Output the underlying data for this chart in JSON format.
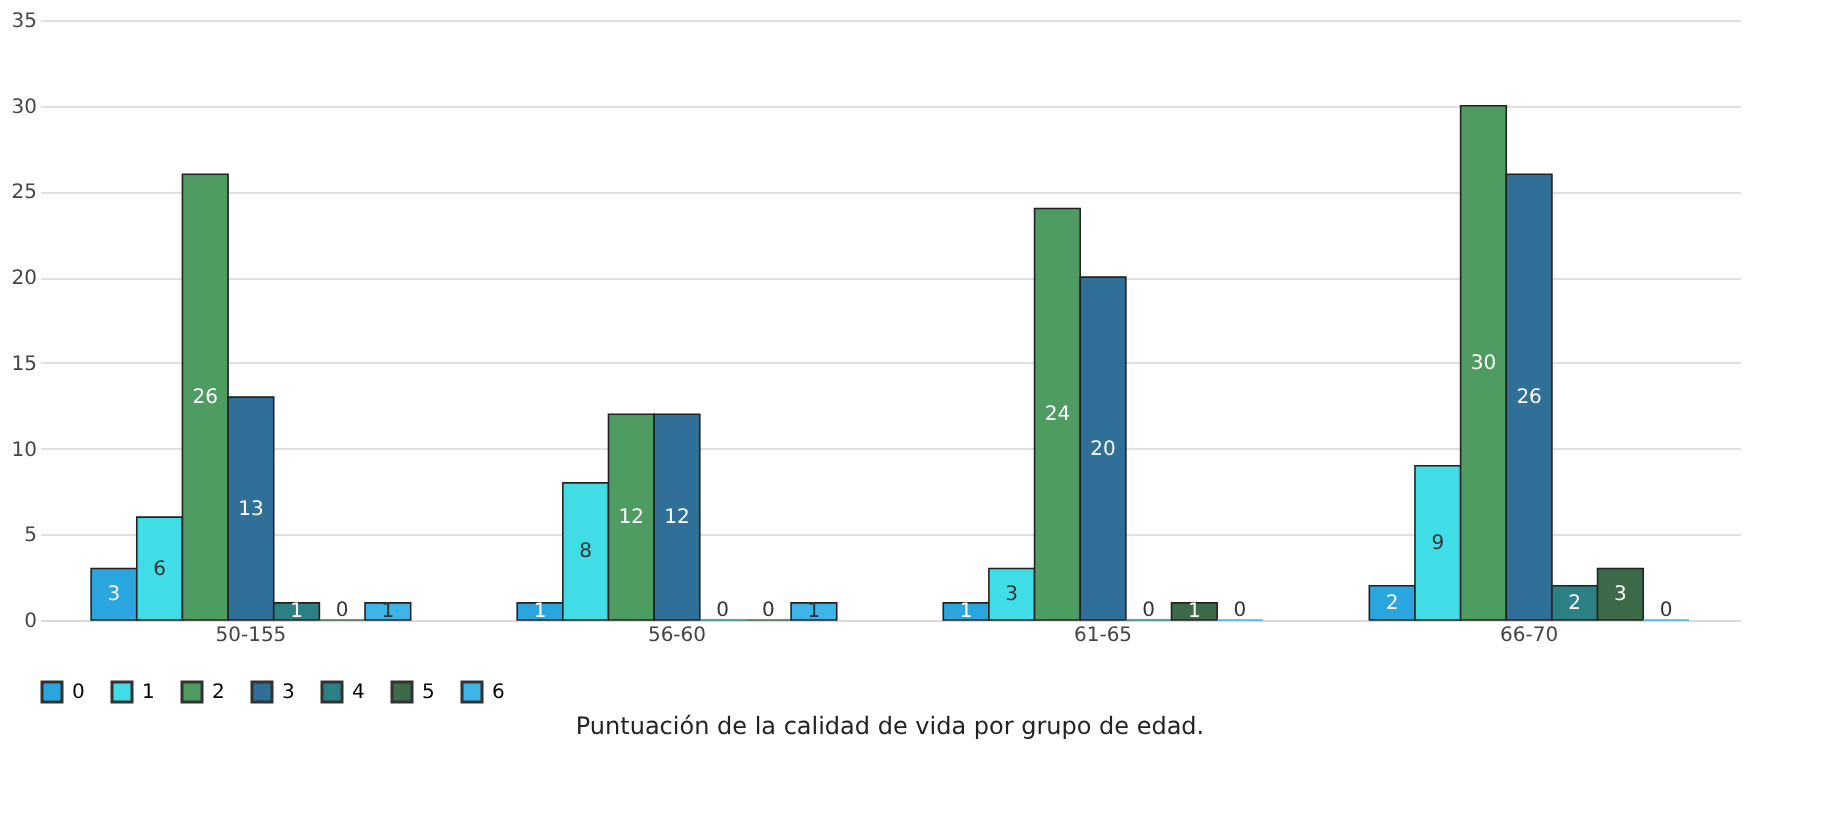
{
  "chart_data": {
    "type": "bar",
    "title": "Puntuación de la calidad de vida por grupo de edad.",
    "categories": [
      "50-155",
      "56-60",
      "61-65",
      "66-70"
    ],
    "series": [
      {
        "name": "0",
        "color": "#2aa6df",
        "values": [
          3,
          1,
          1,
          2
        ]
      },
      {
        "name": "1",
        "color": "#40dde6",
        "values": [
          6,
          8,
          3,
          9
        ]
      },
      {
        "name": "2",
        "color": "#4f9c63",
        "values": [
          26,
          12,
          24,
          30
        ]
      },
      {
        "name": "3",
        "color": "#2f6f98",
        "values": [
          13,
          12,
          20,
          26
        ]
      },
      {
        "name": "4",
        "color": "#2b8183",
        "values": [
          1,
          0,
          0,
          2
        ]
      },
      {
        "name": "5",
        "color": "#3d6b4a",
        "values": [
          0,
          0,
          1,
          3
        ]
      },
      {
        "name": "6",
        "color": "#3db5e8",
        "values": [
          1,
          1,
          0,
          0
        ]
      }
    ],
    "ylim": [
      0,
      35
    ],
    "yticks": [
      0,
      5,
      10,
      15,
      20,
      25,
      30,
      35
    ],
    "grid": "y",
    "legend": "bottom",
    "data_labels": true
  }
}
